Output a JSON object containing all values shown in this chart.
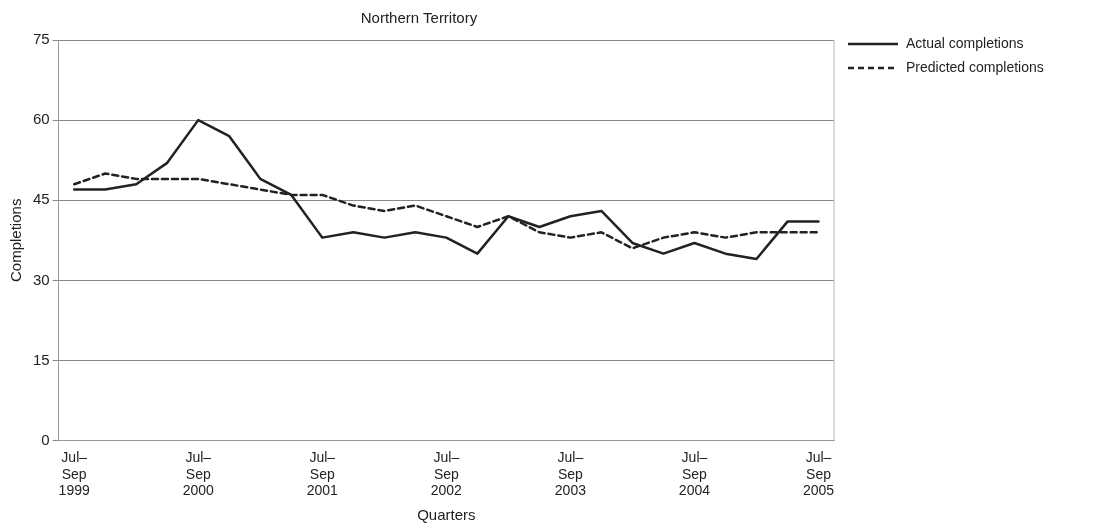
{
  "chart_data": {
    "type": "line",
    "title": "Northern Territory",
    "xlabel": "Quarters",
    "ylabel": "Completions",
    "categories": [
      "Jul–\nSep\n1999",
      null,
      null,
      null,
      "Jul–\nSep\n2000",
      null,
      null,
      null,
      "Jul–\nSep\n2001",
      null,
      null,
      null,
      "Jul–\nSep\n2002",
      null,
      null,
      null,
      "Jul–\nSep\n2003",
      null,
      null,
      null,
      "Jul–\nSep\n2004",
      null,
      null,
      null,
      "Jul–\nSep\n2005"
    ],
    "series": [
      {
        "name": "Actual completions",
        "color": "#222222",
        "line_style": "solid",
        "values": [
          47,
          47,
          48,
          52,
          60,
          57,
          49,
          46,
          38,
          39,
          38,
          39,
          38,
          35,
          42,
          40,
          42,
          43,
          37,
          35,
          37,
          35,
          34,
          41,
          41
        ]
      },
      {
        "name": "Predicted completions",
        "color": "#222222",
        "line_style": "dashed",
        "values": [
          48,
          50,
          49,
          49,
          49,
          48,
          47,
          46,
          46,
          44,
          43,
          44,
          42,
          40,
          42,
          39,
          38,
          39,
          36,
          38,
          39,
          38,
          39,
          39,
          39
        ]
      }
    ],
    "ylim": [
      0,
      75
    ],
    "yticks": [
      0,
      15,
      30,
      45,
      60,
      75
    ],
    "grid": "y",
    "legend": "top right",
    "marker": "none"
  }
}
